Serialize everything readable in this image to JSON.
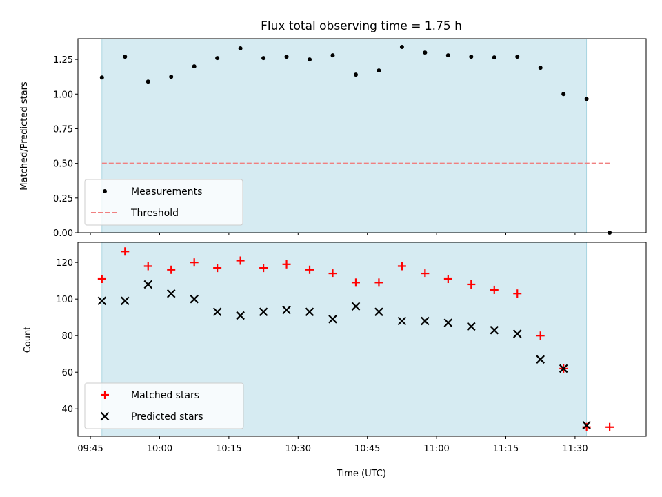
{
  "chart_data": {
    "title": "Flux total observing time = 1.75 h",
    "xlabel": "Time (UTC)",
    "x_ticks": [
      "09:45",
      "10:00",
      "10:15",
      "10:30",
      "10:45",
      "11:00",
      "11:15",
      "11:30"
    ],
    "x_tick_minutes": [
      585,
      600,
      615,
      630,
      645,
      660,
      675,
      690
    ],
    "xlim_minutes": [
      582.3,
      705.4
    ],
    "shaded_span_minutes": [
      587.5,
      692.5
    ],
    "shade_color": "#add8e6",
    "panels": [
      {
        "type": "scatter",
        "ylabel": "Matched/Predicted stars",
        "ylim": [
          0,
          1.4
        ],
        "y_ticks": [
          "0.00",
          "0.25",
          "0.50",
          "0.75",
          "1.00",
          "1.25"
        ],
        "y_tick_values": [
          0,
          0.25,
          0.5,
          0.75,
          1.0,
          1.25
        ],
        "legend": "lower-left",
        "series": [
          {
            "name": "Measurements",
            "marker": "dot",
            "color": "#000000",
            "x_minutes": [
              587.5,
              592.5,
              597.5,
              602.5,
              607.5,
              612.5,
              617.5,
              622.5,
              627.5,
              632.5,
              637.5,
              642.5,
              647.5,
              652.5,
              657.5,
              662.5,
              667.5,
              672.5,
              677.5,
              682.5,
              687.5,
              692.5,
              697.5
            ],
            "values": [
              1.12,
              1.27,
              1.09,
              1.125,
              1.2,
              1.26,
              1.33,
              1.26,
              1.27,
              1.25,
              1.28,
              1.14,
              1.17,
              1.34,
              1.3,
              1.28,
              1.27,
              1.265,
              1.27,
              1.19,
              1.0,
              0.965,
              0.0
            ]
          },
          {
            "name": "Threshold",
            "marker": "dashed-line",
            "color": "#f08080",
            "x_minutes": [
              587.5,
              697.5
            ],
            "values": [
              0.5,
              0.5
            ]
          }
        ]
      },
      {
        "type": "scatter",
        "ylabel": "Count",
        "ylim": [
          25,
          131
        ],
        "y_ticks": [
          "40",
          "60",
          "80",
          "100",
          "120"
        ],
        "y_tick_values": [
          40,
          60,
          80,
          100,
          120
        ],
        "legend": "lower-left",
        "series": [
          {
            "name": "Matched stars",
            "marker": "plus",
            "color": "#ff0000",
            "x_minutes": [
              587.5,
              592.5,
              597.5,
              602.5,
              607.5,
              612.5,
              617.5,
              622.5,
              627.5,
              632.5,
              637.5,
              642.5,
              647.5,
              652.5,
              657.5,
              662.5,
              667.5,
              672.5,
              677.5,
              682.5,
              687.5,
              692.5,
              697.5
            ],
            "values": [
              111,
              126,
              118,
              116,
              120,
              117,
              121,
              117,
              119,
              116,
              114,
              109,
              109,
              118,
              114,
              111,
              108,
              105,
              103,
              80,
              62,
              30,
              30
            ]
          },
          {
            "name": "Predicted stars",
            "marker": "x",
            "color": "#000000",
            "x_minutes": [
              587.5,
              592.5,
              597.5,
              602.5,
              607.5,
              612.5,
              617.5,
              622.5,
              627.5,
              632.5,
              637.5,
              642.5,
              647.5,
              652.5,
              657.5,
              662.5,
              667.5,
              672.5,
              677.5,
              682.5,
              687.5,
              692.5
            ],
            "values": [
              99,
              99,
              108,
              103,
              100,
              93,
              91,
              93,
              94,
              93,
              89,
              96,
              93,
              88,
              88,
              87,
              85,
              83,
              81,
              67,
              62,
              31
            ]
          }
        ]
      }
    ]
  }
}
